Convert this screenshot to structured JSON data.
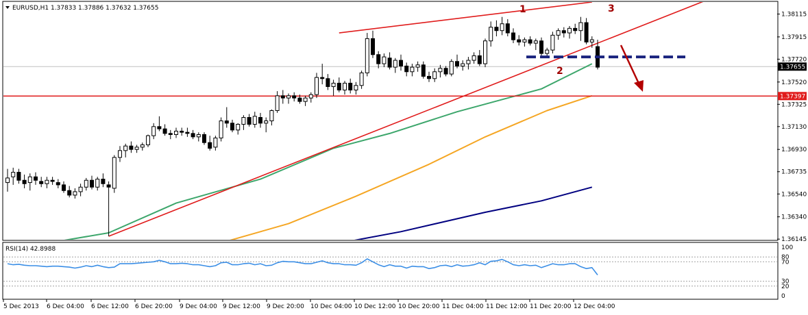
{
  "window": {
    "header_text": "EURUSD,H1  1.37833 1.37886 1.37632 1.37655",
    "rsi_header_text": "RSI(14) 42.8988"
  },
  "colors": {
    "background": "#ffffff",
    "candle": "#000000",
    "ema_green": "#3ca66b",
    "ema_orange": "#f5a623",
    "ema_navy": "#000080",
    "trend_red": "#e01b1b",
    "dashed_navy": "#1a237e",
    "rsi_line": "#3a8ee6",
    "current_price_box": "#000000",
    "level_box": "#e01b1b",
    "annotation_dark_red": "#a00000"
  },
  "chart_data": [
    {
      "type": "candlestick",
      "symbol": "EURUSD",
      "timeframe": "H1",
      "ohlc_header": {
        "open": 1.37833,
        "high": 1.37886,
        "low": 1.37632,
        "close": 1.37655
      },
      "ylim": [
        1.3614,
        1.3822
      ],
      "y_ticks": [
        "1.38115",
        "1.37915",
        "1.37720",
        "1.37520",
        "1.37325",
        "1.37130",
        "1.36930",
        "1.36735",
        "1.36540",
        "1.36340",
        "1.36145"
      ],
      "x_ticks": [
        "5 Dec 2013",
        "6 Dec 04:00",
        "6 Dec 12:00",
        "6 Dec 20:00",
        "9 Dec 04:00",
        "9 Dec 12:00",
        "9 Dec 20:00",
        "10 Dec 04:00",
        "10 Dec 12:00",
        "10 Dec 20:00",
        "11 Dec 04:00",
        "11 Dec 12:00",
        "11 Dec 20:00",
        "12 Dec 04:00"
      ],
      "current_price_label": "1.37655",
      "horizontal_level_label": "1.37397",
      "horizontal_level": 1.37397,
      "dashed_support_level": 1.3774,
      "annotations": [
        "1",
        "2",
        "3"
      ],
      "candles_ohlc": [
        [
          1.3664,
          1.3676,
          1.3656,
          1.3668
        ],
        [
          1.3669,
          1.3677,
          1.3662,
          1.3673
        ],
        [
          1.3673,
          1.3676,
          1.3663,
          1.3666
        ],
        [
          1.3666,
          1.3671,
          1.3659,
          1.3663
        ],
        [
          1.3664,
          1.3672,
          1.3657,
          1.3669
        ],
        [
          1.3669,
          1.3673,
          1.3662,
          1.3666
        ],
        [
          1.3665,
          1.3669,
          1.366,
          1.3663
        ],
        [
          1.3663,
          1.3669,
          1.3659,
          1.3666
        ],
        [
          1.3666,
          1.3669,
          1.3662,
          1.3665
        ],
        [
          1.3664,
          1.3667,
          1.3659,
          1.3662
        ],
        [
          1.3662,
          1.3665,
          1.3655,
          1.3657
        ],
        [
          1.3657,
          1.3661,
          1.3651,
          1.3653
        ],
        [
          1.3653,
          1.3659,
          1.365,
          1.3656
        ],
        [
          1.3656,
          1.3663,
          1.3652,
          1.366
        ],
        [
          1.366,
          1.3668,
          1.3657,
          1.3666
        ],
        [
          1.3666,
          1.367,
          1.3658,
          1.366
        ],
        [
          1.366,
          1.3669,
          1.3657,
          1.3667
        ],
        [
          1.3667,
          1.3672,
          1.366,
          1.3663
        ],
        [
          1.3662,
          1.3665,
          1.3617,
          1.366
        ],
        [
          1.3659,
          1.3688,
          1.3655,
          1.3686
        ],
        [
          1.3686,
          1.3696,
          1.3682,
          1.3692
        ],
        [
          1.3692,
          1.3698,
          1.3686,
          1.3696
        ],
        [
          1.3696,
          1.37,
          1.369,
          1.3693
        ],
        [
          1.3693,
          1.3697,
          1.369,
          1.3695
        ],
        [
          1.3695,
          1.3699,
          1.3692,
          1.3697
        ],
        [
          1.3697,
          1.3706,
          1.3695,
          1.3705
        ],
        [
          1.3705,
          1.3716,
          1.3702,
          1.3713
        ],
        [
          1.3713,
          1.3722,
          1.3709,
          1.3711
        ],
        [
          1.3711,
          1.3715,
          1.3705,
          1.3707
        ],
        [
          1.3707,
          1.371,
          1.3702,
          1.3706
        ],
        [
          1.3706,
          1.3712,
          1.3703,
          1.3709
        ],
        [
          1.3709,
          1.3712,
          1.3705,
          1.3708
        ],
        [
          1.3708,
          1.3712,
          1.3704,
          1.3707
        ],
        [
          1.3707,
          1.371,
          1.3702,
          1.3704
        ],
        [
          1.3704,
          1.3708,
          1.37,
          1.3706
        ],
        [
          1.3706,
          1.3708,
          1.3697,
          1.3699
        ],
        [
          1.3699,
          1.3705,
          1.3692,
          1.3694
        ],
        [
          1.3695,
          1.3705,
          1.3692,
          1.3703
        ],
        [
          1.3703,
          1.3721,
          1.37,
          1.3718
        ],
        [
          1.3718,
          1.373,
          1.3712,
          1.3716
        ],
        [
          1.3716,
          1.3719,
          1.3708,
          1.371
        ],
        [
          1.371,
          1.3716,
          1.3706,
          1.3715
        ],
        [
          1.3715,
          1.3723,
          1.371,
          1.3721
        ],
        [
          1.3721,
          1.3724,
          1.3713,
          1.3715
        ],
        [
          1.3715,
          1.3726,
          1.3712,
          1.3722
        ],
        [
          1.3721,
          1.3725,
          1.3712,
          1.3716
        ],
        [
          1.3716,
          1.3721,
          1.3708,
          1.3718
        ],
        [
          1.3718,
          1.3728,
          1.3714,
          1.3727
        ],
        [
          1.3727,
          1.3744,
          1.3725,
          1.374
        ],
        [
          1.374,
          1.3745,
          1.3733,
          1.3738
        ],
        [
          1.3738,
          1.3742,
          1.3733,
          1.374
        ],
        [
          1.374,
          1.3743,
          1.3735,
          1.3738
        ],
        [
          1.3738,
          1.3741,
          1.3733,
          1.3735
        ],
        [
          1.3735,
          1.374,
          1.3731,
          1.3738
        ],
        [
          1.3738,
          1.3743,
          1.3734,
          1.3741
        ],
        [
          1.3741,
          1.376,
          1.3738,
          1.3756
        ],
        [
          1.3756,
          1.3768,
          1.375,
          1.3755
        ],
        [
          1.3755,
          1.3759,
          1.3745,
          1.3748
        ],
        [
          1.3748,
          1.3754,
          1.374,
          1.3751
        ],
        [
          1.3751,
          1.3756,
          1.3743,
          1.3745
        ],
        [
          1.3745,
          1.3753,
          1.3741,
          1.3751
        ],
        [
          1.3751,
          1.3755,
          1.3742,
          1.3745
        ],
        [
          1.3745,
          1.3752,
          1.3741,
          1.3749
        ],
        [
          1.3749,
          1.3762,
          1.3746,
          1.376
        ],
        [
          1.376,
          1.3795,
          1.3757,
          1.379
        ],
        [
          1.379,
          1.3797,
          1.3773,
          1.3776
        ],
        [
          1.3776,
          1.3779,
          1.3764,
          1.3768
        ],
        [
          1.3768,
          1.3777,
          1.3765,
          1.3774
        ],
        [
          1.3773,
          1.3778,
          1.3763,
          1.3765
        ],
        [
          1.3765,
          1.3773,
          1.376,
          1.3771
        ],
        [
          1.3771,
          1.3776,
          1.3762,
          1.3766
        ],
        [
          1.3766,
          1.3769,
          1.3757,
          1.3761
        ],
        [
          1.3761,
          1.3768,
          1.3757,
          1.3765
        ],
        [
          1.3765,
          1.377,
          1.3761,
          1.3767
        ],
        [
          1.3767,
          1.377,
          1.3755,
          1.3757
        ],
        [
          1.3757,
          1.3761,
          1.3752,
          1.3755
        ],
        [
          1.3755,
          1.3764,
          1.3752,
          1.3761
        ],
        [
          1.3761,
          1.3767,
          1.3756,
          1.3764
        ],
        [
          1.3764,
          1.3766,
          1.3757,
          1.3759
        ],
        [
          1.3759,
          1.3772,
          1.3757,
          1.377
        ],
        [
          1.377,
          1.3776,
          1.3764,
          1.3766
        ],
        [
          1.3766,
          1.3771,
          1.3762,
          1.3768
        ],
        [
          1.3768,
          1.3774,
          1.3763,
          1.3771
        ],
        [
          1.3771,
          1.3778,
          1.3768,
          1.3775
        ],
        [
          1.3775,
          1.378,
          1.3766,
          1.3768
        ],
        [
          1.3768,
          1.379,
          1.3765,
          1.3788
        ],
        [
          1.3788,
          1.3805,
          1.3783,
          1.38
        ],
        [
          1.38,
          1.3806,
          1.3792,
          1.3797
        ],
        [
          1.3797,
          1.3809,
          1.3793,
          1.3803
        ],
        [
          1.3803,
          1.3807,
          1.3792,
          1.3795
        ],
        [
          1.3795,
          1.3799,
          1.3786,
          1.3789
        ],
        [
          1.3789,
          1.3793,
          1.3784,
          1.3787
        ],
        [
          1.3787,
          1.3791,
          1.3783,
          1.3789
        ],
        [
          1.3789,
          1.3792,
          1.3784,
          1.3786
        ],
        [
          1.3786,
          1.379,
          1.378,
          1.3788
        ],
        [
          1.3788,
          1.3791,
          1.3775,
          1.3777
        ],
        [
          1.3777,
          1.3782,
          1.3773,
          1.378
        ],
        [
          1.378,
          1.3796,
          1.3777,
          1.3793
        ],
        [
          1.3793,
          1.3799,
          1.3789,
          1.3797
        ],
        [
          1.3797,
          1.38,
          1.3791,
          1.3795
        ],
        [
          1.3795,
          1.3801,
          1.379,
          1.3799
        ],
        [
          1.3799,
          1.3803,
          1.3794,
          1.3797
        ],
        [
          1.3797,
          1.3809,
          1.3788,
          1.3804
        ],
        [
          1.3804,
          1.3808,
          1.3785,
          1.3787
        ],
        [
          1.3787,
          1.3792,
          1.3782,
          1.3789
        ],
        [
          1.3783,
          1.3789,
          1.3763,
          1.3765
        ]
      ],
      "ema_green_values": [
        [
          0,
          1.3605
        ],
        [
          18,
          1.362
        ],
        [
          30,
          1.3646
        ],
        [
          45,
          1.3667
        ],
        [
          58,
          1.3694
        ],
        [
          68,
          1.3707
        ],
        [
          80,
          1.3726
        ],
        [
          95,
          1.3746
        ],
        [
          104,
          1.3768
        ]
      ],
      "ema_orange_values": [
        [
          35,
          1.3607
        ],
        [
          50,
          1.3628
        ],
        [
          62,
          1.3652
        ],
        [
          75,
          1.368
        ],
        [
          85,
          1.3704
        ],
        [
          96,
          1.3727
        ],
        [
          104,
          1.374
        ]
      ],
      "ema_navy_values": [
        [
          58,
          1.361
        ],
        [
          70,
          1.3621
        ],
        [
          85,
          1.3638
        ],
        [
          95,
          1.3648
        ],
        [
          104,
          1.366
        ]
      ],
      "trendlines": [
        {
          "from": [
            18,
            1.3617
          ],
          "to": [
            105,
            1.3786
          ],
          "extend": true
        },
        {
          "from": [
            59,
            1.3795
          ],
          "to": [
            104,
            1.3822
          ]
        }
      ]
    },
    {
      "type": "line",
      "title": "RSI(14) 42.8988",
      "ylim": [
        0,
        100
      ],
      "y_ticks": [
        "100",
        "80",
        "70",
        "30",
        "20",
        "0"
      ],
      "levels": [
        80,
        70,
        30,
        20
      ],
      "series": [
        {
          "values": [
            66,
            64,
            65,
            63,
            62,
            62,
            61,
            60,
            61,
            61,
            60,
            59,
            57,
            59,
            62,
            60,
            63,
            60,
            58,
            59,
            66,
            66,
            66,
            67,
            68,
            69,
            70,
            73,
            70,
            66,
            66,
            67,
            66,
            64,
            64,
            62,
            60,
            62,
            68,
            69,
            64,
            64,
            66,
            67,
            64,
            66,
            62,
            63,
            68,
            71,
            70,
            70,
            68,
            66,
            66,
            69,
            72,
            68,
            66,
            66,
            64,
            64,
            63,
            68,
            76,
            70,
            64,
            60,
            64,
            61,
            61,
            57,
            61,
            60,
            60,
            56,
            58,
            62,
            63,
            60,
            64,
            61,
            62,
            64,
            68,
            64,
            71,
            72,
            75,
            70,
            64,
            62,
            64,
            62,
            63,
            58,
            62,
            66,
            64,
            64,
            66,
            66,
            60,
            56,
            58,
            43
          ]
        }
      ]
    }
  ]
}
